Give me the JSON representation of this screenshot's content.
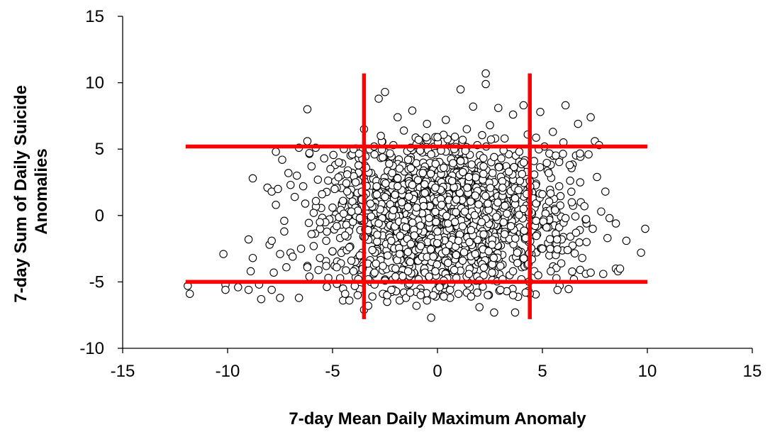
{
  "chart_data": {
    "type": "scatter",
    "title": "",
    "xlabel": "7-day Mean Daily Maximum Anomaly",
    "ylabel_lines": [
      "7-day Sum of Daily Suicide",
      "Anomalies"
    ],
    "xlim": [
      -15,
      15
    ],
    "ylim": [
      -10,
      15
    ],
    "xticks": [
      -15,
      -10,
      -5,
      0,
      5,
      10,
      15
    ],
    "yticks": [
      -10,
      -5,
      0,
      5,
      10,
      15
    ],
    "xtick_labels": [
      "-15",
      "-10",
      "-5",
      "0",
      "5",
      "10",
      "15"
    ],
    "ytick_labels": [
      "-10",
      "-5",
      "0",
      "5",
      "10",
      "15"
    ],
    "grid": false,
    "legend": "none",
    "marker": {
      "shape": "circle",
      "fill": "#ffffff",
      "stroke": "#000000"
    },
    "threshold_color": "#ff0000",
    "threshold_lines": [
      {
        "orientation": "horizontal",
        "y": 5.2,
        "x_range": [
          -12,
          10
        ]
      },
      {
        "orientation": "horizontal",
        "y": -5.0,
        "x_range": [
          -12,
          10
        ]
      },
      {
        "orientation": "vertical",
        "x": -3.5,
        "y_range": [
          -7.8,
          10.7
        ]
      },
      {
        "orientation": "vertical",
        "x": 4.4,
        "y_range": [
          -7.8,
          10.7
        ]
      }
    ],
    "points": [
      [
        -11.9,
        -5.3
      ],
      [
        -11.8,
        -5.9
      ],
      [
        -10.2,
        -2.9
      ],
      [
        -10.1,
        -5.2
      ],
      [
        -10.1,
        -5.6
      ],
      [
        -9.5,
        -5.4
      ],
      [
        -9.0,
        -1.8
      ],
      [
        -9.0,
        -5.6
      ],
      [
        -8.9,
        -4.2
      ],
      [
        -8.8,
        2.8
      ],
      [
        -8.8,
        -3.2
      ],
      [
        -8.5,
        -5.2
      ],
      [
        -8.4,
        -6.3
      ],
      [
        -8.1,
        2.1
      ],
      [
        -8.0,
        -2.2
      ],
      [
        -7.9,
        1.8
      ],
      [
        -7.9,
        -1.9
      ],
      [
        -7.9,
        -5.6
      ],
      [
        -7.8,
        -4.3
      ],
      [
        -7.7,
        4.8
      ],
      [
        -7.7,
        0.8
      ],
      [
        -7.6,
        2.0
      ],
      [
        -7.5,
        -2.9
      ],
      [
        -7.5,
        -6.2
      ],
      [
        -7.4,
        4.2
      ],
      [
        -7.3,
        -0.4
      ],
      [
        -7.3,
        -1.2
      ],
      [
        -7.2,
        -3.9
      ],
      [
        -7.1,
        3.2
      ],
      [
        -7.0,
        2.3
      ],
      [
        -7.0,
        -2.8
      ],
      [
        -6.9,
        -3.1
      ],
      [
        -6.8,
        1.4
      ],
      [
        -6.7,
        3.0
      ],
      [
        -6.6,
        5.1
      ],
      [
        -6.6,
        -6.2
      ],
      [
        -6.5,
        -2.5
      ],
      [
        -6.4,
        2.2
      ],
      [
        -6.3,
        0.9
      ],
      [
        -6.2,
        8.0
      ],
      [
        -6.2,
        5.6
      ],
      [
        -6.2,
        -3.8
      ],
      [
        -6.1,
        4.7
      ],
      [
        -6.1,
        -4.6
      ],
      [
        -6.0,
        -1.4
      ],
      [
        -6.0,
        3.7
      ],
      [
        -5.9,
        0.2
      ],
      [
        -5.9,
        -2.3
      ],
      [
        -5.8,
        5.1
      ],
      [
        -5.7,
        2.7
      ],
      [
        -5.6,
        -0.5
      ],
      [
        -5.6,
        -3.2
      ],
      [
        -5.5,
        1.6
      ],
      [
        -5.4,
        4.3
      ],
      [
        -5.3,
        -1.9
      ],
      [
        -5.2,
        -4.7
      ],
      [
        -5.1,
        3.5
      ],
      [
        -5.0,
        0.6
      ],
      [
        -5.0,
        -2.7
      ],
      [
        -4.9,
        2.0
      ],
      [
        -4.8,
        -0.8
      ],
      [
        -4.7,
        4.0
      ],
      [
        -4.6,
        -3.6
      ],
      [
        -4.5,
        1.1
      ],
      [
        -4.5,
        -5.5
      ],
      [
        -4.4,
        -1.5
      ],
      [
        -4.3,
        3.1
      ],
      [
        -4.2,
        -2.4
      ],
      [
        -4.1,
        0.3
      ],
      [
        -4.0,
        5.0
      ],
      [
        -4.0,
        -4.2
      ],
      [
        -3.9,
        2.5
      ],
      [
        -3.8,
        -6.0
      ],
      [
        -3.7,
        -0.2
      ],
      [
        -3.7,
        -3.0
      ],
      [
        -3.6,
        1.8
      ],
      [
        -3.5,
        6.5
      ],
      [
        -3.5,
        -7.1
      ],
      [
        -3.4,
        3.6
      ],
      [
        -3.3,
        -1.1
      ],
      [
        -3.2,
        0.9
      ],
      [
        -3.1,
        -2.6
      ],
      [
        -3.0,
        4.6
      ],
      [
        -3.0,
        -5.2
      ],
      [
        -2.9,
        2.2
      ],
      [
        -2.8,
        8.8
      ],
      [
        -2.8,
        -0.6
      ],
      [
        -2.7,
        6.0
      ],
      [
        -2.6,
        -3.8
      ],
      [
        -2.5,
        9.3
      ],
      [
        -2.5,
        1.4
      ],
      [
        -2.4,
        -6.5
      ],
      [
        -2.3,
        3.9
      ],
      [
        -2.2,
        -1.9
      ],
      [
        -2.1,
        5.3
      ],
      [
        -2.1,
        0.4
      ],
      [
        -2.0,
        -4.6
      ],
      [
        -1.9,
        7.4
      ],
      [
        -1.9,
        2.8
      ],
      [
        -1.8,
        -2.9
      ],
      [
        -1.7,
        1.0
      ],
      [
        -1.6,
        6.4
      ],
      [
        -1.6,
        -5.8
      ],
      [
        -1.5,
        -0.9
      ],
      [
        -1.4,
        4.2
      ],
      [
        -1.3,
        -3.5
      ],
      [
        -1.2,
        2.3
      ],
      [
        -1.2,
        7.9
      ],
      [
        -1.1,
        -1.5
      ],
      [
        -1.0,
        0.6
      ],
      [
        -1.0,
        -6.8
      ],
      [
        -0.9,
        5.7
      ],
      [
        -0.8,
        -2.3
      ],
      [
        -0.7,
        3.2
      ],
      [
        -0.6,
        -4.3
      ],
      [
        -0.6,
        1.7
      ],
      [
        -0.5,
        6.9
      ],
      [
        -0.4,
        -0.2
      ],
      [
        -0.3,
        -7.7
      ],
      [
        -0.3,
        4.6
      ],
      [
        -0.2,
        -3.1
      ],
      [
        -0.1,
        2.1
      ],
      [
        0.0,
        -1.2
      ],
      [
        0.0,
        5.9
      ],
      [
        0.1,
        -5.4
      ],
      [
        0.2,
        0.8
      ],
      [
        0.3,
        3.6
      ],
      [
        0.4,
        -2.7
      ],
      [
        0.4,
        7.2
      ],
      [
        0.5,
        -0.6
      ],
      [
        0.6,
        -6.2
      ],
      [
        0.7,
        2.6
      ],
      [
        0.8,
        -4.1
      ],
      [
        0.8,
        5.0
      ],
      [
        0.9,
        1.2
      ],
      [
        1.0,
        -1.9
      ],
      [
        1.1,
        9.5
      ],
      [
        1.1,
        4.1
      ],
      [
        1.2,
        -3.4
      ],
      [
        1.3,
        0.3
      ],
      [
        1.4,
        6.5
      ],
      [
        1.4,
        -5.8
      ],
      [
        1.5,
        2.9
      ],
      [
        1.6,
        -1.1
      ],
      [
        1.7,
        8.2
      ],
      [
        1.8,
        -2.9
      ],
      [
        1.8,
        1.5
      ],
      [
        1.9,
        5.3
      ],
      [
        2.0,
        -6.9
      ],
      [
        2.1,
        -0.5
      ],
      [
        2.2,
        3.7
      ],
      [
        2.2,
        -4.5
      ],
      [
        2.3,
        10.7
      ],
      [
        2.3,
        9.9
      ],
      [
        2.4,
        0.9
      ],
      [
        2.5,
        6.8
      ],
      [
        2.6,
        -2.2
      ],
      [
        2.7,
        -7.3
      ],
      [
        2.7,
        4.4
      ],
      [
        2.8,
        -0.1
      ],
      [
        2.9,
        8.1
      ],
      [
        3.0,
        -3.8
      ],
      [
        3.1,
        2.1
      ],
      [
        3.2,
        5.8
      ],
      [
        3.2,
        -1.4
      ],
      [
        3.3,
        -5.7
      ],
      [
        3.4,
        3.3
      ],
      [
        3.5,
        -0.8
      ],
      [
        3.6,
        7.6
      ],
      [
        3.7,
        -7.3
      ],
      [
        3.7,
        1.3
      ],
      [
        3.8,
        -2.8
      ],
      [
        3.9,
        4.8
      ],
      [
        4.0,
        -4.8
      ],
      [
        4.1,
        0.5
      ],
      [
        4.1,
        8.3
      ],
      [
        4.2,
        -1.7
      ],
      [
        4.3,
        6.1
      ],
      [
        4.4,
        -5.9
      ],
      [
        4.4,
        2.6
      ],
      [
        4.5,
        -3.3
      ],
      [
        4.6,
        4.1
      ],
      [
        4.7,
        -0.4
      ],
      [
        4.8,
        -4.5
      ],
      [
        4.9,
        7.8
      ],
      [
        5.0,
        1.6
      ],
      [
        5.0,
        -2.5
      ],
      [
        5.1,
        5.2
      ],
      [
        5.2,
        -0.9
      ],
      [
        5.3,
        3.2
      ],
      [
        5.4,
        -4.2
      ],
      [
        5.5,
        6.3
      ],
      [
        5.6,
        0.4
      ],
      [
        5.7,
        -1.8
      ],
      [
        5.8,
        2.2
      ],
      [
        5.9,
        -3.6
      ],
      [
        6.0,
        5.5
      ],
      [
        6.1,
        8.3
      ],
      [
        6.1,
        -0.2
      ],
      [
        6.2,
        -2.6
      ],
      [
        6.3,
        3.8
      ],
      [
        6.4,
        1.0
      ],
      [
        6.5,
        -4.8
      ],
      [
        6.6,
        -1.3
      ],
      [
        6.7,
        6.9
      ],
      [
        6.8,
        2.5
      ],
      [
        6.9,
        -3.2
      ],
      [
        7.0,
        0.7
      ],
      [
        7.1,
        -2.0
      ],
      [
        7.2,
        4.6
      ],
      [
        7.3,
        7.4
      ],
      [
        7.3,
        -4.3
      ],
      [
        7.4,
        -1.0
      ],
      [
        7.5,
        5.6
      ],
      [
        7.6,
        2.9
      ],
      [
        7.7,
        5.3
      ],
      [
        7.8,
        0.3
      ],
      [
        7.9,
        -4.4
      ],
      [
        8.0,
        1.8
      ],
      [
        8.1,
        -1.7
      ],
      [
        8.2,
        -0.2
      ],
      [
        8.5,
        -4.0
      ],
      [
        8.5,
        -0.6
      ],
      [
        8.6,
        -4.2
      ],
      [
        8.7,
        -4.0
      ],
      [
        9.0,
        -1.9
      ],
      [
        9.7,
        -2.8
      ],
      [
        9.9,
        -1.0
      ],
      [
        -4.5,
        -6.4
      ],
      [
        -4.2,
        -6.4
      ],
      [
        -4.4,
        -5.9
      ],
      [
        -3.3,
        -6.8
      ],
      [
        -3.1,
        -6.1
      ],
      [
        -2.6,
        -5.9
      ],
      [
        -2.4,
        -6.0
      ],
      [
        -2.2,
        -5.6
      ],
      [
        -1.8,
        -6.4
      ],
      [
        -1.5,
        -6.2
      ],
      [
        -1.3,
        -5.8
      ],
      [
        -0.8,
        -6.0
      ],
      [
        -0.5,
        -6.4
      ],
      [
        -0.2,
        -6.0
      ],
      [
        0.3,
        -6.1
      ],
      [
        0.6,
        -5.6
      ],
      [
        1.0,
        -5.9
      ],
      [
        1.6,
        -6.1
      ],
      [
        1.9,
        -5.8
      ],
      [
        2.4,
        -6.0
      ],
      [
        3.0,
        -5.6
      ],
      [
        3.6,
        -6.0
      ],
      [
        4.2,
        -5.8
      ],
      [
        -0.4,
        -4.6
      ],
      [
        -0.1,
        -4.2
      ],
      [
        0.3,
        -4.9
      ],
      [
        -0.9,
        -4.8
      ],
      [
        -1.4,
        -4.2
      ],
      [
        0.9,
        -4.7
      ],
      [
        1.5,
        -4.4
      ],
      [
        2.0,
        -4.9
      ],
      [
        2.6,
        -4.3
      ],
      [
        3.1,
        -4.8
      ],
      [
        -2.0,
        -4.0
      ],
      [
        -2.5,
        -4.9
      ],
      [
        -3.0,
        -4.3
      ],
      [
        3.6,
        -4.2
      ],
      [
        -3.3,
        -4.8
      ],
      [
        -4.1,
        -3.4
      ],
      [
        -4.8,
        -3.9
      ],
      [
        -5.3,
        -3.8
      ],
      [
        -6.2,
        -3.9
      ]
    ],
    "dense_cloud": {
      "center": [
        0.5,
        0.0
      ],
      "spread": [
        2.9,
        2.7
      ],
      "count": 1500,
      "seed": 7
    }
  }
}
